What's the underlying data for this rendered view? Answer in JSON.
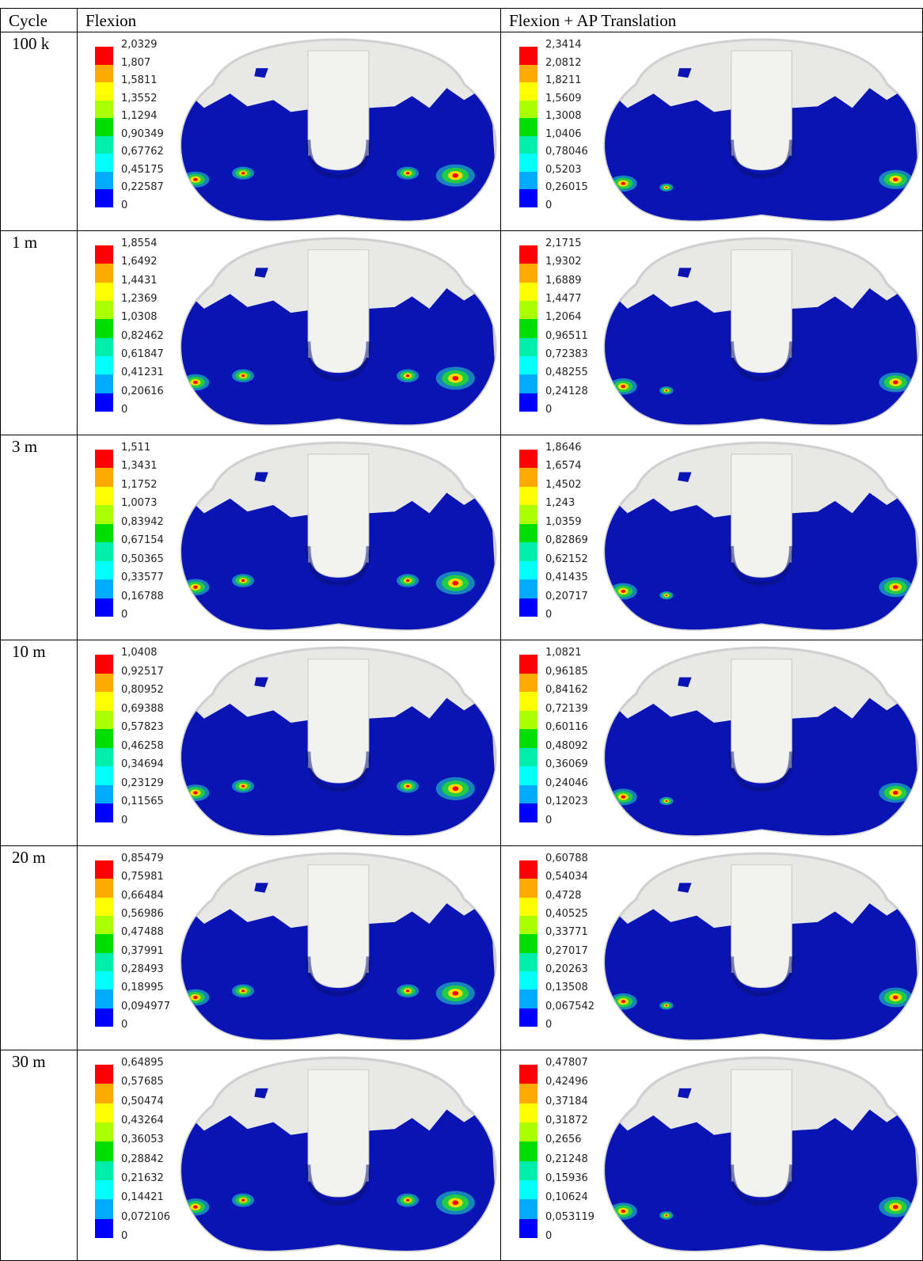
{
  "table": {
    "header": [
      "Cycle",
      "Flexion",
      "Flexion + AP Translation"
    ],
    "rows": [
      {
        "cycle": "100 k",
        "flexion": [
          "2,0329",
          "1,807",
          "1,5811",
          "1,3552",
          "1,1294",
          "0,90349",
          "0,67762",
          "0,45175",
          "0,22587",
          "0"
        ],
        "flexion_ap": [
          "2,3414",
          "2,0812",
          "1,8211",
          "1,5609",
          "1,3008",
          "1,0406",
          "0,78046",
          "0,5203",
          "0,26015",
          "0"
        ]
      },
      {
        "cycle": "1 m",
        "flexion": [
          "1,8554",
          "1,6492",
          "1,4431",
          "1,2369",
          "1,0308",
          "0,82462",
          "0,61847",
          "0,41231",
          "0,20616",
          "0"
        ],
        "flexion_ap": [
          "2,1715",
          "1,9302",
          "1,6889",
          "1,4477",
          "1,2064",
          "0,96511",
          "0,72383",
          "0,48255",
          "0,24128",
          "0"
        ]
      },
      {
        "cycle": "3 m",
        "flexion": [
          "1,511",
          "1,3431",
          "1,1752",
          "1,0073",
          "0,83942",
          "0,67154",
          "0,50365",
          "0,33577",
          "0,16788",
          "0"
        ],
        "flexion_ap": [
          "1,8646",
          "1,6574",
          "1,4502",
          "1,243",
          "1,0359",
          "0,82869",
          "0,62152",
          "0,41435",
          "0,20717",
          "0"
        ]
      },
      {
        "cycle": "10 m",
        "flexion": [
          "1,0408",
          "0,92517",
          "0,80952",
          "0,69388",
          "0,57823",
          "0,46258",
          "0,34694",
          "0,23129",
          "0,11565",
          "0"
        ],
        "flexion_ap": [
          "1,0821",
          "0,96185",
          "0,84162",
          "0,72139",
          "0,60116",
          "0,48092",
          "0,36069",
          "0,24046",
          "0,12023",
          "0"
        ]
      },
      {
        "cycle": "20 m",
        "flexion": [
          "0,85479",
          "0,75981",
          "0,66484",
          "0,56986",
          "0,47488",
          "0,37991",
          "0,28493",
          "0,18995",
          "0,094977",
          "0"
        ],
        "flexion_ap": [
          "0,60788",
          "0,54034",
          "0,4728",
          "0,40525",
          "0,33771",
          "0,27017",
          "0,20263",
          "0,13508",
          "0,067542",
          "0"
        ]
      },
      {
        "cycle": "30 m",
        "flexion": [
          "0,64895",
          "0,57685",
          "0,50474",
          "0,43264",
          "0,36053",
          "0,28842",
          "0,21632",
          "0,14421",
          "0,072106",
          "0"
        ],
        "flexion_ap": [
          "0,47807",
          "0,42496",
          "0,37184",
          "0,31872",
          "0,2656",
          "0,21248",
          "0,15936",
          "0,10624",
          "0,053119",
          "0"
        ]
      }
    ]
  }
}
